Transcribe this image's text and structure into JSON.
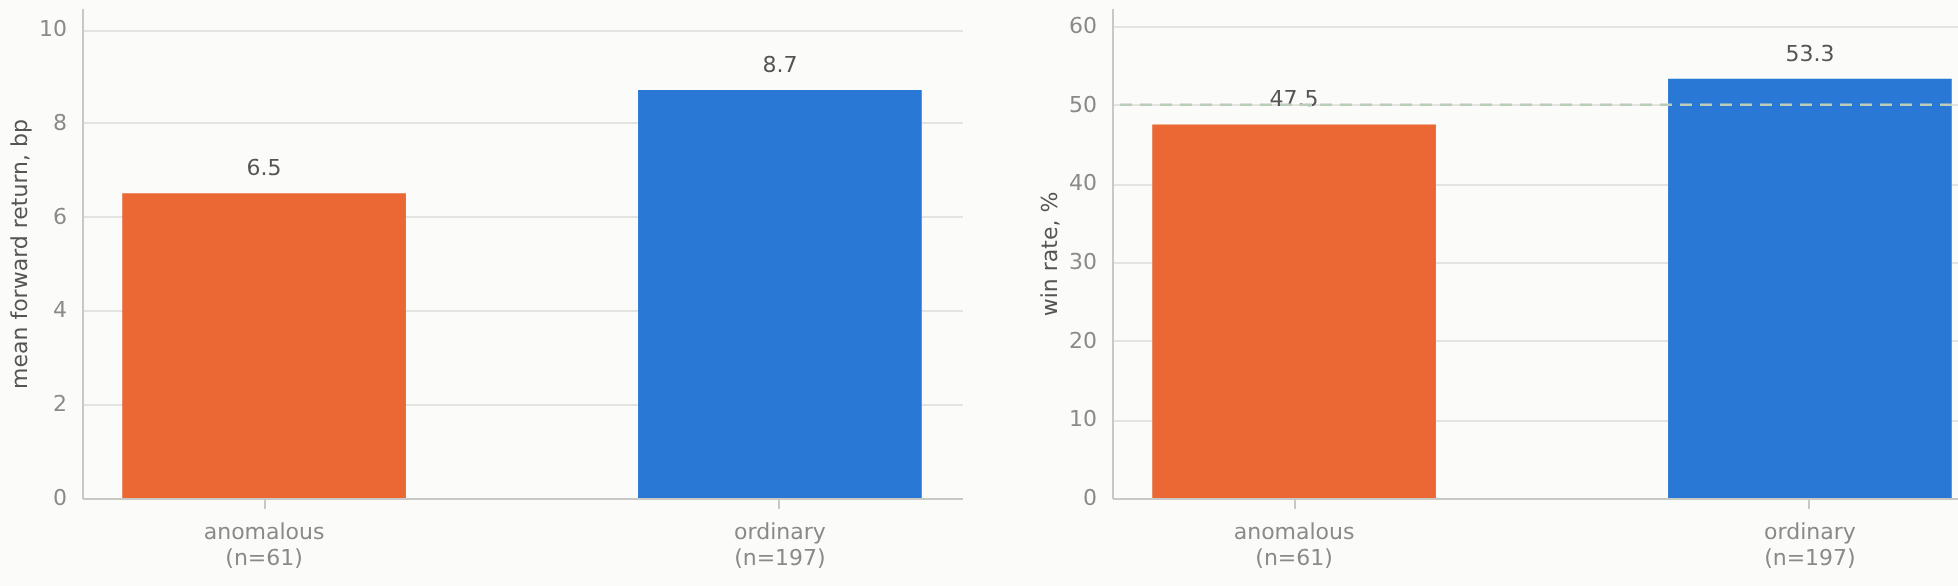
{
  "chart_data": [
    {
      "type": "bar",
      "ylabel": "mean forward return, bp",
      "categories": [
        "anomalous\n(n=61)",
        "ordinary\n(n=197)"
      ],
      "colors": [
        "#eb6834",
        "#2a78d6"
      ],
      "values": [
        6.5,
        8.7
      ],
      "ylim": [
        0,
        10.45
      ],
      "yticks": [
        0,
        2,
        4,
        6,
        8,
        10
      ],
      "grid": "y",
      "data_labels": true
    },
    {
      "type": "bar",
      "ylabel": "win rate, %",
      "categories": [
        "anomalous\n(n=61)",
        "ordinary\n(n=197)"
      ],
      "colors": [
        "#eb6834",
        "#2a78d6"
      ],
      "values": [
        47.5,
        53.3
      ],
      "ylim": [
        0,
        62.3
      ],
      "yticks": [
        0,
        10,
        20,
        30,
        40,
        50,
        60
      ],
      "grid": "y",
      "data_labels": true,
      "ref_lines": [
        {
          "axis": "y",
          "value": 50,
          "color": "#b9cdb9",
          "line_style": "dashed"
        }
      ]
    }
  ]
}
